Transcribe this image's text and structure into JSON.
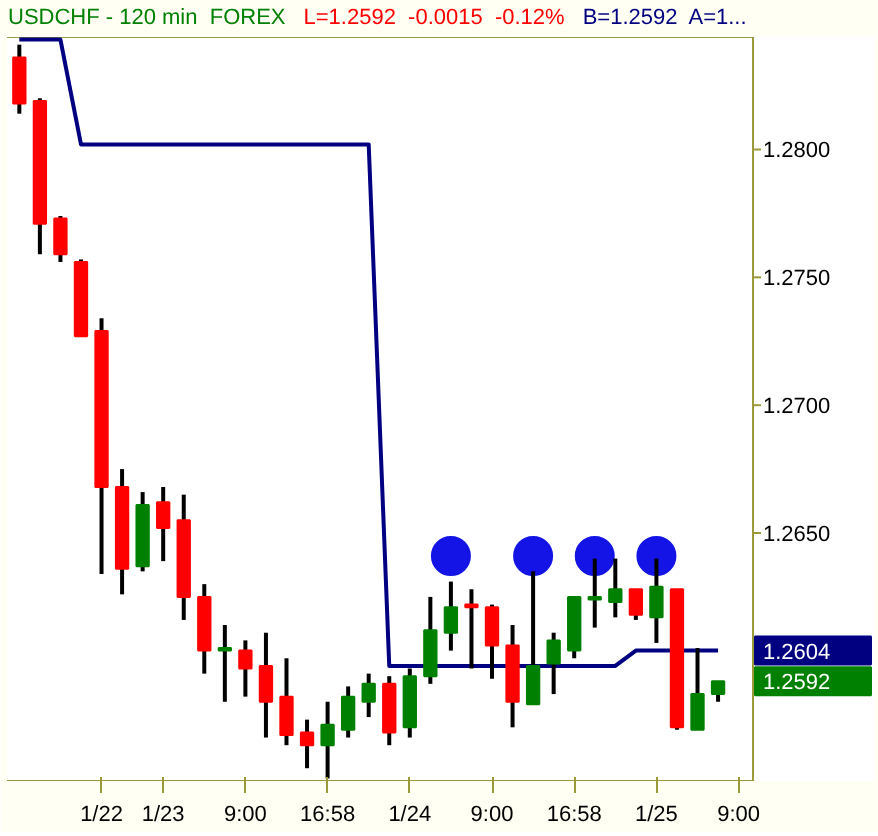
{
  "chart_data": {
    "type": "candlestick",
    "title": "USDCHF - 120 min  FOREX",
    "annotations": [
      "L=1.2592  -0.0015  -0.12%",
      "B=1.2592  A=1...",
      "1.2604",
      "1.2592"
    ],
    "categories": [
      null,
      null,
      null,
      null,
      "1/22",
      null,
      null,
      "1/23",
      null,
      null,
      null,
      "9:00",
      null,
      null,
      null,
      "16:58",
      null,
      null,
      null,
      "1/24",
      null,
      null,
      null,
      "9:00",
      null,
      null,
      null,
      "16:58",
      null,
      null,
      null,
      "1/25",
      null,
      null,
      null,
      "9:00"
    ],
    "ohlc": [
      [
        1.2836,
        1.2841,
        1.2814,
        1.2818
      ],
      [
        1.2819,
        1.282,
        1.2759,
        1.2771
      ],
      [
        1.2773,
        1.2774,
        1.2756,
        1.2759
      ],
      [
        1.2756,
        1.2757,
        1.2727,
        1.2727
      ],
      [
        1.2729,
        1.2734,
        1.2634,
        1.2668
      ],
      [
        1.2668,
        1.2675,
        1.2626,
        1.2636
      ],
      [
        1.2637,
        1.2666,
        1.2635,
        1.2661
      ],
      [
        1.2662,
        1.2668,
        1.2639,
        1.2652
      ],
      [
        1.2655,
        1.2665,
        1.2616,
        1.2625
      ],
      [
        1.2625,
        1.263,
        1.2595,
        1.2604
      ],
      [
        1.2604,
        1.2614,
        1.2584,
        1.2605
      ],
      [
        1.2604,
        1.2608,
        1.2586,
        1.2597
      ],
      [
        1.2598,
        1.2611,
        1.257,
        1.2584
      ],
      [
        1.2586,
        1.2601,
        1.2567,
        1.2571
      ],
      [
        1.2572,
        1.2577,
        1.2558,
        1.2567
      ],
      [
        1.2567,
        1.2584,
        1.2554,
        1.2575
      ],
      [
        1.2573,
        1.259,
        1.257,
        1.2586
      ],
      [
        1.2584,
        1.2595,
        1.2578,
        1.2591
      ],
      [
        1.2591,
        1.2594,
        1.2567,
        1.2572
      ],
      [
        1.2574,
        1.2597,
        1.257,
        1.2594
      ],
      [
        1.2594,
        1.2625,
        1.2591,
        1.2612
      ],
      [
        1.2611,
        1.2631,
        1.2604,
        1.2621
      ],
      [
        1.2622,
        1.2628,
        1.2597,
        1.2621
      ],
      [
        1.2621,
        1.2622,
        1.2593,
        1.2606
      ],
      [
        1.2606,
        1.2614,
        1.2574,
        1.2584
      ],
      [
        1.2583,
        1.2635,
        1.2583,
        1.2598
      ],
      [
        1.2599,
        1.2611,
        1.2587,
        1.2608
      ],
      [
        1.2604,
        1.2625,
        1.2601,
        1.2625
      ],
      [
        1.2624,
        1.264,
        1.2613,
        1.2625
      ],
      [
        1.2623,
        1.264,
        1.2617,
        1.2628
      ],
      [
        1.2628,
        1.2628,
        1.2616,
        1.2618
      ],
      [
        1.2617,
        1.264,
        1.2607,
        1.2629
      ],
      [
        1.2628,
        1.2628,
        1.2573,
        1.2574
      ],
      [
        1.2573,
        1.2605,
        1.2573,
        1.2587
      ],
      [
        1.2587,
        1.2592,
        1.2584,
        1.2592
      ],
      null
    ],
    "series": [
      {
        "type": "line",
        "color": "#000080",
        "values": [
          1.2843,
          1.2843,
          1.2843,
          1.2802,
          1.2802,
          1.2802,
          1.2802,
          1.2802,
          1.2802,
          1.2802,
          1.2802,
          1.2802,
          1.2802,
          1.2802,
          1.2802,
          1.2802,
          1.2802,
          1.2802,
          1.2598,
          1.2598,
          1.2598,
          1.2598,
          1.2598,
          1.2598,
          1.2598,
          1.2598,
          1.2598,
          1.2598,
          1.2598,
          1.2598,
          1.2604,
          1.2604,
          1.2604,
          1.2604,
          1.2604,
          null
        ]
      },
      {
        "type": "scatter",
        "color": "#1414e6",
        "marker": "circle",
        "values": [
          null,
          null,
          null,
          null,
          null,
          null,
          null,
          null,
          null,
          null,
          null,
          null,
          null,
          null,
          null,
          null,
          null,
          null,
          null,
          null,
          null,
          1.2641,
          null,
          null,
          null,
          1.2641,
          null,
          null,
          1.2641,
          null,
          null,
          1.2641,
          null,
          null,
          null,
          null
        ]
      }
    ],
    "ylim": [
      1.2553,
      1.2844
    ],
    "yticks": [
      {
        "value": 1.265,
        "label": "1.2650"
      },
      {
        "value": 1.27,
        "label": "1.2700"
      },
      {
        "value": 1.275,
        "label": "1.2750"
      },
      {
        "value": 1.28,
        "label": "1.2800"
      }
    ],
    "grid": false
  }
}
